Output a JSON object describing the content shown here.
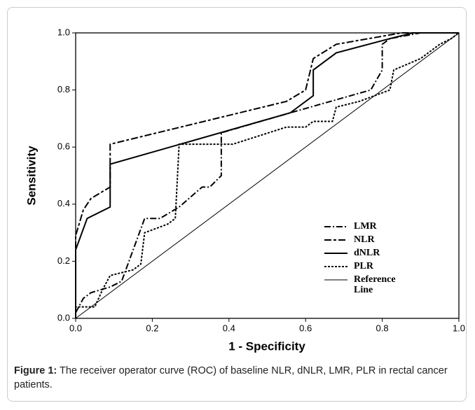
{
  "chart_data": {
    "type": "line",
    "xlabel": "1 - Specificity",
    "ylabel": "Sensitivity",
    "xlim": [
      0,
      1
    ],
    "ylim": [
      0,
      1
    ],
    "xticks": [
      {
        "value": 0,
        "label": "0.0"
      },
      {
        "value": 0.2,
        "label": "0.2"
      },
      {
        "value": 0.4,
        "label": "0.4"
      },
      {
        "value": 0.6,
        "label": "0.6"
      },
      {
        "value": 0.8,
        "label": "0.8"
      },
      {
        "value": 1,
        "label": "1.0"
      }
    ],
    "yticks": [
      {
        "value": 0,
        "label": "0.0"
      },
      {
        "value": 0.2,
        "label": "0.2"
      },
      {
        "value": 0.4,
        "label": "0.4"
      },
      {
        "value": 0.6,
        "label": "0.6"
      },
      {
        "value": 0.8,
        "label": "0.8"
      },
      {
        "value": 1,
        "label": "1.0"
      }
    ],
    "legend": "lower right",
    "grid": false,
    "series": [
      {
        "name": "LMR",
        "color": "#000000",
        "dash": "dash-dot",
        "x": [
          0,
          0.02,
          0.04,
          0.09,
          0.12,
          0.18,
          0.22,
          0.27,
          0.33,
          0.35,
          0.38,
          0.38,
          0.56,
          0.77,
          0.8,
          0.8,
          0.82,
          0.9,
          1
        ],
        "values": [
          0.02,
          0.07,
          0.09,
          0.11,
          0.13,
          0.35,
          0.35,
          0.39,
          0.46,
          0.46,
          0.5,
          0.65,
          0.72,
          0.8,
          0.87,
          0.96,
          0.98,
          1,
          1
        ]
      },
      {
        "name": "NLR",
        "color": "#000000",
        "dash": "long-dash-dash",
        "x": [
          0,
          0,
          0.02,
          0.04,
          0.09,
          0.09,
          0.55,
          0.6,
          0.62,
          0.68,
          0.85,
          1
        ],
        "values": [
          0,
          0.29,
          0.38,
          0.42,
          0.46,
          0.61,
          0.76,
          0.8,
          0.91,
          0.96,
          1,
          1
        ]
      },
      {
        "name": "dNLR",
        "color": "#000000",
        "dash": "solid",
        "x": [
          0,
          0,
          0.03,
          0.09,
          0.09,
          0.56,
          0.62,
          0.62,
          0.68,
          0.82,
          0.88,
          1
        ],
        "values": [
          0,
          0.24,
          0.35,
          0.39,
          0.54,
          0.72,
          0.78,
          0.87,
          0.93,
          0.98,
          1,
          1
        ]
      },
      {
        "name": "PLR",
        "color": "#000000",
        "dash": "dotted",
        "x": [
          0,
          0,
          0.05,
          0.07,
          0.09,
          0.15,
          0.17,
          0.18,
          0.24,
          0.26,
          0.27,
          0.37,
          0.41,
          0.55,
          0.6,
          0.62,
          0.67,
          0.68,
          0.74,
          0.82,
          0.83,
          0.9,
          0.95,
          0.98,
          1
        ],
        "values": [
          0,
          0.04,
          0.04,
          0.1,
          0.15,
          0.17,
          0.19,
          0.3,
          0.33,
          0.35,
          0.61,
          0.61,
          0.61,
          0.67,
          0.67,
          0.69,
          0.69,
          0.74,
          0.76,
          0.8,
          0.87,
          0.91,
          0.96,
          0.98,
          1
        ]
      },
      {
        "name": "Reference Line",
        "color": "#000000",
        "dash": "thin",
        "x": [
          0,
          1
        ],
        "values": [
          0,
          1
        ]
      }
    ]
  },
  "caption": {
    "label": "Figure 1:",
    "text": "The receiver operator curve (ROC) of baseline NLR, dNLR, LMR, PLR in rectal cancer patients."
  }
}
